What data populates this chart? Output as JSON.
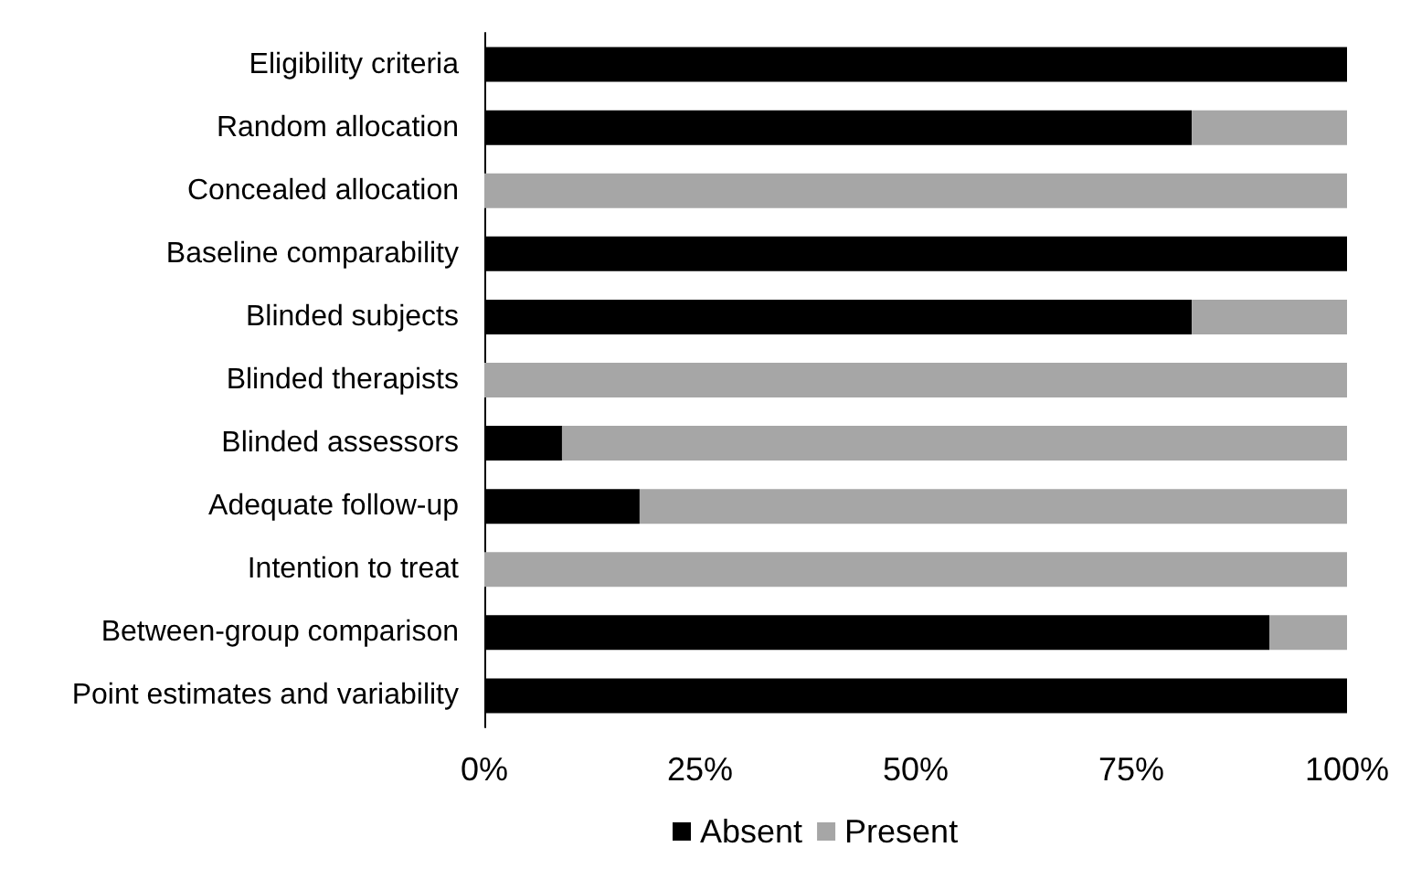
{
  "chart_data": {
    "type": "bar",
    "orientation": "horizontal",
    "stacked": true,
    "categories": [
      "Eligibility criteria",
      "Random allocation",
      "Concealed allocation",
      "Baseline comparability",
      "Blinded subjects",
      "Blinded therapists",
      "Blinded assessors",
      "Adequate follow-up",
      "Intention to treat",
      "Between-group comparison",
      "Point estimates and variability"
    ],
    "series": [
      {
        "name": "Absent",
        "color": "#000000",
        "values": [
          100,
          82,
          0,
          100,
          82,
          0,
          9,
          18,
          0,
          91,
          100
        ]
      },
      {
        "name": "Present",
        "color": "#a6a6a6",
        "values": [
          0,
          18,
          100,
          0,
          18,
          100,
          91,
          82,
          100,
          9,
          0
        ]
      }
    ],
    "xlim": [
      0,
      100
    ],
    "xticks": [
      {
        "value": 0,
        "label": "0%"
      },
      {
        "value": 25,
        "label": "25%"
      },
      {
        "value": 50,
        "label": "50%"
      },
      {
        "value": 75,
        "label": "75%"
      },
      {
        "value": 100,
        "label": "100%"
      }
    ],
    "grid": false,
    "legend": "bottom"
  }
}
